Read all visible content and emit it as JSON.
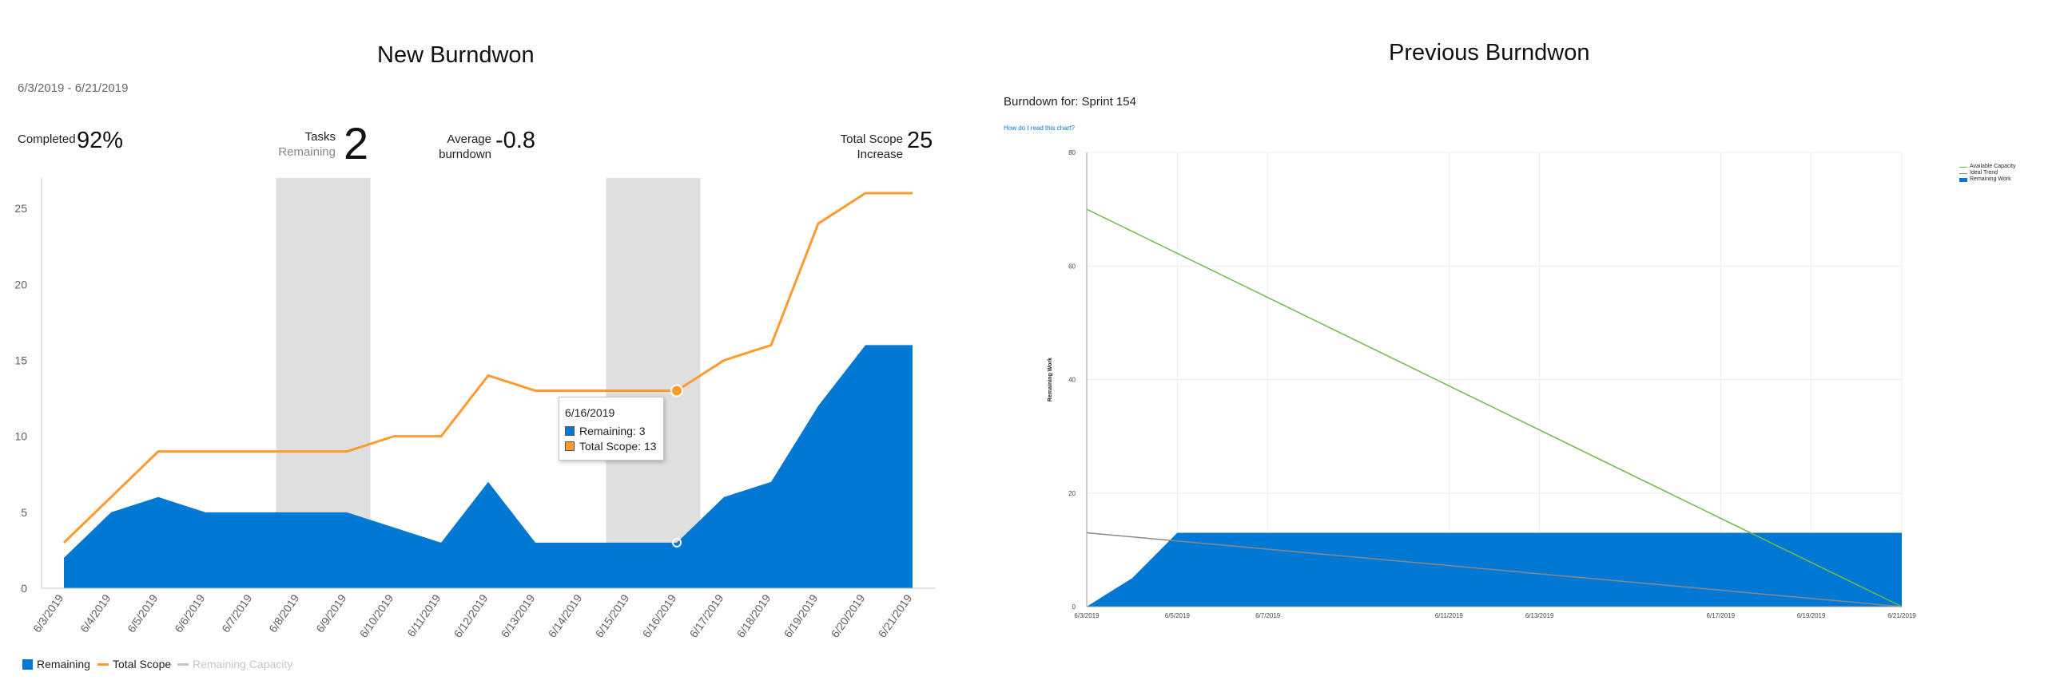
{
  "left": {
    "title": "New Burndwon",
    "date_range": "6/3/2019 - 6/21/2019",
    "kpis": {
      "completed_label": "Completed",
      "completed_value": "92%",
      "tasks_label": "Tasks",
      "tasks_sub": "Remaining",
      "tasks_value": "2",
      "avg_label_1": "Average",
      "avg_label_2": "burndown",
      "avg_value": "-0.8",
      "scope_label_1": "Total Scope",
      "scope_label_2": "Increase",
      "scope_value": "25"
    },
    "legend": [
      {
        "label": "Remaining",
        "color": "#0078d4"
      },
      {
        "label": "Total Scope",
        "color": "#ff9a2e"
      },
      {
        "label": "Remaining Capacity",
        "color": "#c8c6c4"
      }
    ],
    "tooltip": {
      "date": "6/16/2019",
      "remaining": "Remaining: 3",
      "total_scope": "Total Scope: 13"
    }
  },
  "right": {
    "title": "Previous Burndwon",
    "subtitle": "Burndown for: Sprint 154",
    "help_link": "How do I read this chart?",
    "legend": [
      {
        "label": "Available Capacity",
        "color": "#70b94a"
      },
      {
        "label": "Ideal Trend",
        "color": "#888888"
      },
      {
        "label": "Remaining Work",
        "color": "#0078d4"
      }
    ]
  },
  "chart_data": [
    {
      "type": "area",
      "title": "New Burndwon",
      "x": [
        "6/3/2019",
        "6/4/2019",
        "6/5/2019",
        "6/6/2019",
        "6/7/2019",
        "6/8/2019",
        "6/9/2019",
        "6/10/2019",
        "6/11/2019",
        "6/12/2019",
        "6/13/2019",
        "6/14/2019",
        "6/15/2019",
        "6/16/2019",
        "6/17/2019",
        "6/18/2019",
        "6/19/2019",
        "6/20/2019",
        "6/21/2019"
      ],
      "series": [
        {
          "name": "Remaining",
          "kind": "area",
          "color": "#0078d4",
          "values": [
            2,
            5,
            6,
            5,
            5,
            5,
            5,
            4,
            3,
            7,
            3,
            3,
            3,
            3,
            6,
            7,
            12,
            16,
            16
          ]
        },
        {
          "name": "Total Scope",
          "kind": "line",
          "color": "#ff9a2e",
          "values": [
            3,
            6,
            9,
            9,
            9,
            9,
            9,
            10,
            10,
            14,
            13,
            13,
            13,
            13,
            15,
            16,
            24,
            26,
            26
          ]
        }
      ],
      "non_working_days": [
        [
          "6/8/2019",
          "6/9/2019"
        ],
        [
          "6/15/2019",
          "6/16/2019"
        ]
      ],
      "ylim": [
        0,
        27
      ],
      "yticks": [
        0,
        5,
        10,
        15,
        20,
        25
      ],
      "grid": false,
      "legend": "bottom-left"
    },
    {
      "type": "area",
      "title": "Burndown for: Sprint 154",
      "ylabel": "Remaining Work",
      "x_ticks": [
        "6/3/2019",
        "6/5/2019",
        "6/7/2019",
        "6/11/2019",
        "6/13/2019",
        "6/17/2019",
        "6/19/2019",
        "6/21/2019"
      ],
      "series": [
        {
          "name": "Available Capacity",
          "kind": "line",
          "color": "#70b94a",
          "x": [
            "6/3/2019",
            "6/21/2019"
          ],
          "values": [
            70,
            0
          ]
        },
        {
          "name": "Ideal Trend",
          "kind": "line",
          "color": "#888888",
          "x": [
            "6/3/2019",
            "6/21/2019"
          ],
          "values": [
            13,
            0
          ]
        },
        {
          "name": "Remaining Work",
          "kind": "area",
          "color": "#0078d4",
          "x": [
            "6/3/2019",
            "6/4/2019",
            "6/5/2019",
            "6/21/2019"
          ],
          "values": [
            0,
            5,
            13,
            13
          ]
        }
      ],
      "ylim": [
        0,
        80
      ],
      "yticks": [
        0,
        20,
        40,
        60,
        80
      ],
      "grid": true,
      "legend": "top-right"
    }
  ]
}
